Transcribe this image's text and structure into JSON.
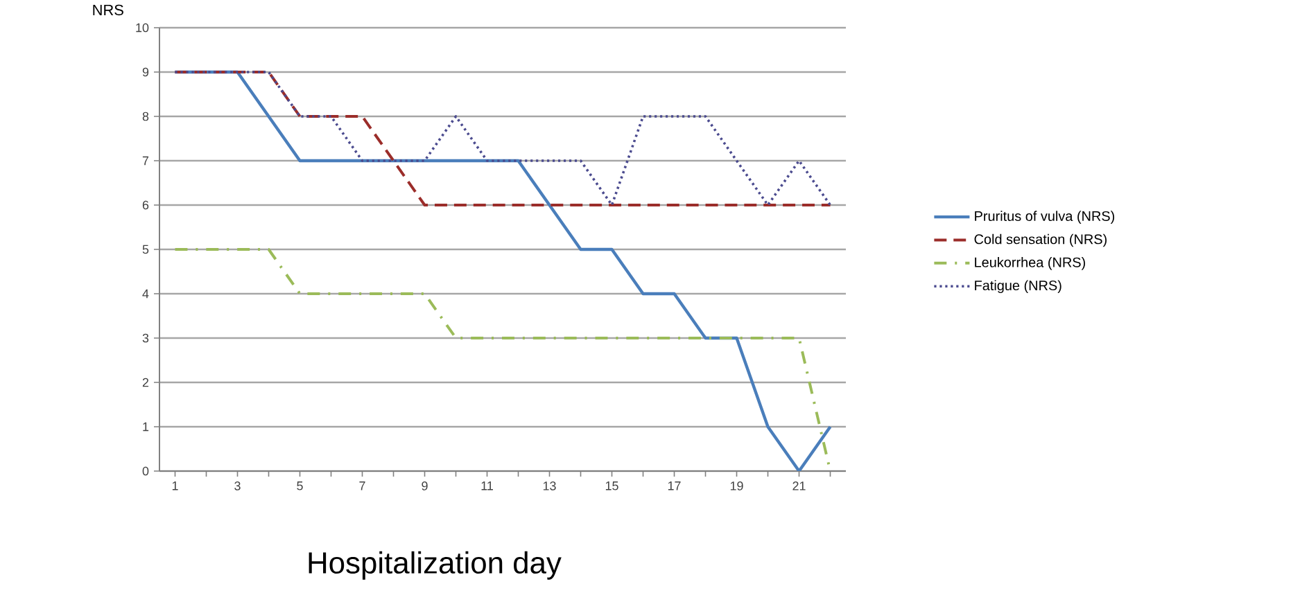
{
  "chart_data": {
    "type": "line",
    "xlabel": "Hospitalization day",
    "ylabel": "NRS",
    "x": [
      1,
      2,
      3,
      4,
      5,
      6,
      7,
      8,
      9,
      10,
      11,
      12,
      13,
      14,
      15,
      16,
      17,
      18,
      19,
      20,
      21,
      22
    ],
    "xlim": [
      0.5,
      22.5
    ],
    "xticks": [
      1,
      {
        "value": 2,
        "label": null
      },
      3,
      {
        "value": 4,
        "label": null
      },
      5,
      {
        "value": 6,
        "label": null
      },
      7,
      {
        "value": 8,
        "label": null
      },
      9,
      {
        "value": 10,
        "label": null
      },
      11,
      {
        "value": 12,
        "label": null
      },
      13,
      {
        "value": 14,
        "label": null
      },
      15,
      {
        "value": 16,
        "label": null
      },
      17,
      {
        "value": 18,
        "label": null
      },
      19,
      {
        "value": 20,
        "label": null
      },
      21,
      {
        "value": 22,
        "label": null
      }
    ],
    "ylim": [
      0,
      10
    ],
    "yticks": [
      0,
      1,
      2,
      3,
      4,
      5,
      6,
      7,
      8,
      9,
      10
    ],
    "grid": "y",
    "legend": "right",
    "marker": "none",
    "series": [
      {
        "name": "Pruritus of vulva (NRS)",
        "color": "#4a7ebb",
        "line_style": "solid",
        "values": [
          9,
          9,
          9,
          8,
          7,
          7,
          7,
          7,
          7,
          7,
          7,
          7,
          6,
          5,
          5,
          4,
          4,
          3,
          3,
          1,
          0,
          1
        ]
      },
      {
        "name": "Cold sensation (NRS)",
        "color": "#9b2d2a",
        "line_style": "dashed",
        "values": [
          9,
          9,
          9,
          9,
          8,
          8,
          8,
          7,
          6,
          6,
          6,
          6,
          6,
          6,
          6,
          6,
          6,
          6,
          6,
          6,
          6,
          6
        ]
      },
      {
        "name": "Leukorrhea (NRS)",
        "color": "#9bbb59",
        "line_style": "dashdot",
        "values": [
          5,
          5,
          5,
          5,
          4,
          4,
          4,
          4,
          4,
          3,
          3,
          3,
          3,
          3,
          3,
          3,
          3,
          3,
          3,
          3,
          3,
          0
        ]
      },
      {
        "name": "Fatigue (NRS)",
        "color": "#4b4b8f",
        "line_style": "dotted",
        "values": [
          9,
          9,
          9,
          9,
          8,
          8,
          7,
          7,
          7,
          8,
          7,
          7,
          7,
          7,
          6,
          8,
          8,
          8,
          7,
          6,
          7,
          6
        ]
      }
    ]
  }
}
